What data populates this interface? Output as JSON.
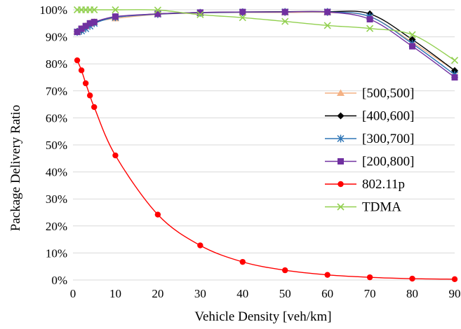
{
  "chart_data": {
    "type": "line",
    "title": "",
    "xlabel": "Vehicle Density [veh/km]",
    "ylabel": "Package Delivery Ratio",
    "xlim": [
      0,
      90
    ],
    "ylim": [
      0,
      100
    ],
    "x_ticks": [
      "0",
      "10",
      "20",
      "30",
      "40",
      "50",
      "60",
      "70",
      "80",
      "90"
    ],
    "y_ticks": [
      "0%",
      "10%",
      "20%",
      "30%",
      "40%",
      "50%",
      "60%",
      "70%",
      "80%",
      "90%",
      "100%"
    ],
    "grid": "horizontal",
    "legend_position": "right",
    "series": [
      {
        "name": "[500,500]",
        "color": "#f4b183",
        "marker": "triangle",
        "x": [
          1,
          2,
          3,
          4,
          5,
          10,
          20,
          30,
          40,
          50,
          60,
          70,
          80,
          90
        ],
        "y": [
          92,
          93,
          94,
          95,
          95.5,
          96.8,
          98.3,
          98.8,
          99,
          99,
          99,
          97.5,
          88,
          77.5
        ]
      },
      {
        "name": "[400,600]",
        "color": "#000000",
        "marker": "diamond",
        "x": [
          1,
          2,
          3,
          4,
          5,
          10,
          20,
          30,
          40,
          50,
          60,
          70,
          80,
          90
        ],
        "y": [
          92,
          92.5,
          93.5,
          94.5,
          95.2,
          97.3,
          98.5,
          99,
          99.2,
          99.3,
          99.3,
          98.5,
          89,
          77.5
        ]
      },
      {
        "name": "[300,700]",
        "color": "#2e75b6",
        "marker": "star",
        "x": [
          1,
          2,
          3,
          4,
          5,
          10,
          20,
          30,
          40,
          50,
          60,
          70,
          80,
          90
        ],
        "y": [
          91.8,
          92.2,
          93,
          94,
          95,
          97.2,
          98.4,
          98.9,
          99.1,
          99.2,
          99.2,
          97.5,
          87.5,
          76
        ]
      },
      {
        "name": "[200,800]",
        "color": "#7030a0",
        "marker": "square",
        "x": [
          1,
          2,
          3,
          4,
          5,
          10,
          20,
          30,
          40,
          50,
          60,
          70,
          80,
          90
        ],
        "y": [
          91.8,
          93,
          94,
          95,
          95.5,
          97.5,
          98.5,
          99,
          99.2,
          99.2,
          99.2,
          96.5,
          86.5,
          75
        ]
      },
      {
        "name": "802.11p",
        "color": "#ff0000",
        "marker": "circle",
        "x": [
          1,
          2,
          3,
          4,
          5,
          10,
          20,
          30,
          40,
          50,
          60,
          70,
          80,
          90
        ],
        "y": [
          81.3,
          77.6,
          72.8,
          68.3,
          64,
          46.1,
          24.2,
          12.8,
          6.7,
          3.6,
          1.9,
          1,
          0.5,
          0.3
        ]
      },
      {
        "name": "TDMA",
        "color": "#92d050",
        "marker": "x",
        "x": [
          1,
          2,
          3,
          4,
          5,
          10,
          20,
          30,
          40,
          50,
          60,
          70,
          80,
          90
        ],
        "y": [
          100,
          100,
          100,
          100,
          100,
          100,
          99.9,
          98.2,
          97.1,
          95.7,
          94.2,
          93.1,
          90.8,
          81.3
        ]
      }
    ]
  }
}
